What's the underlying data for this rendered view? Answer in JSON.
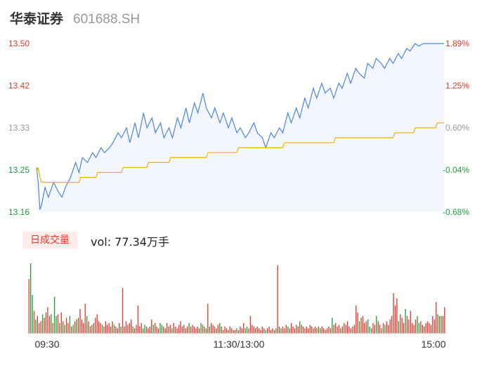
{
  "header": {
    "stock_name": "华泰证券",
    "stock_code": "601688.SH"
  },
  "volume_panel": {
    "tag_label": "日成交量",
    "readout": "vol: 77.34万手"
  },
  "colors": {
    "price_line": "#4a86e8",
    "avg_line": "#f0b400",
    "area_fill": "#f3f6fd",
    "up": "#e8392c",
    "down": "#1e9f3c",
    "neutral": "#999999"
  },
  "chart_data": [
    {
      "type": "line",
      "name": "intraday-price",
      "ylim": [
        13.16,
        13.5
      ],
      "xlim": [
        0,
        240
      ],
      "y_ticks_left": [
        "13.50",
        "13.42",
        "13.33",
        "13.25",
        "13.16"
      ],
      "y_ticks_right": [
        "1.89%",
        "1.25%",
        "0.60%",
        "-0.04%",
        "-0.68%"
      ],
      "x_ticks": [
        "09:30",
        "11:30/13:00",
        "15:00"
      ],
      "series": [
        {
          "role": "price",
          "x": [
            0,
            1,
            2,
            3,
            5,
            7,
            10,
            13,
            15,
            17,
            20,
            23,
            25,
            27,
            30,
            33,
            35,
            38,
            40,
            43,
            45,
            48,
            50,
            53,
            55,
            58,
            60,
            63,
            65,
            68,
            70,
            73,
            75,
            78,
            80,
            83,
            85,
            88,
            90,
            93,
            95,
            98,
            100,
            103,
            105,
            108,
            110,
            113,
            115,
            118,
            120,
            123,
            125,
            128,
            130,
            133,
            135,
            138,
            140,
            143,
            145,
            148,
            150,
            153,
            155,
            158,
            160,
            163,
            165,
            168,
            170,
            173,
            175,
            178,
            180,
            183,
            185,
            188,
            190,
            193,
            195,
            198,
            200,
            203,
            205,
            208,
            210,
            213,
            215,
            218,
            220,
            223,
            225,
            228,
            230,
            233,
            235,
            238,
            240
          ],
          "y": [
            13.25,
            13.22,
            13.165,
            13.175,
            13.21,
            13.19,
            13.22,
            13.2,
            13.19,
            13.21,
            13.23,
            13.26,
            13.24,
            13.27,
            13.26,
            13.28,
            13.27,
            13.29,
            13.28,
            13.29,
            13.3,
            13.32,
            13.31,
            13.33,
            13.3,
            13.34,
            13.31,
            13.36,
            13.33,
            13.35,
            13.32,
            13.34,
            13.31,
            13.33,
            13.31,
            13.35,
            13.33,
            13.37,
            13.34,
            13.38,
            13.36,
            13.4,
            13.37,
            13.35,
            13.37,
            13.34,
            13.36,
            13.33,
            13.35,
            13.32,
            13.33,
            13.31,
            13.32,
            13.34,
            13.32,
            13.31,
            13.29,
            13.32,
            13.31,
            13.33,
            13.32,
            13.36,
            13.34,
            13.37,
            13.35,
            13.39,
            13.37,
            13.41,
            13.39,
            13.42,
            13.4,
            13.41,
            13.39,
            13.42,
            13.41,
            13.44,
            13.42,
            13.45,
            13.44,
            13.43,
            13.46,
            13.45,
            13.47,
            13.46,
            13.45,
            13.47,
            13.46,
            13.48,
            13.47,
            13.49,
            13.485,
            13.5,
            13.495,
            13.5,
            13.5,
            13.5,
            13.5,
            13.5,
            13.5
          ]
        },
        {
          "role": "average",
          "x": [
            0,
            1,
            2,
            3,
            5,
            10,
            25,
            26,
            35,
            36,
            50,
            51,
            65,
            66,
            78,
            79,
            100,
            101,
            118,
            119,
            145,
            146,
            175,
            176,
            190,
            191,
            210,
            211,
            222,
            223,
            235,
            236,
            240
          ],
          "y": [
            13.24,
            13.25,
            13.23,
            13.22,
            13.22,
            13.22,
            13.22,
            13.23,
            13.23,
            13.24,
            13.24,
            13.25,
            13.25,
            13.26,
            13.26,
            13.27,
            13.27,
            13.28,
            13.28,
            13.29,
            13.29,
            13.3,
            13.3,
            13.31,
            13.31,
            13.31,
            13.31,
            13.32,
            13.32,
            13.33,
            13.33,
            13.34,
            13.34
          ]
        }
      ]
    },
    {
      "type": "bar",
      "name": "intraday-volume",
      "unit": "万手",
      "x_ticks": [
        "09:30",
        "11:30/13:00",
        "15:00"
      ],
      "values": [
        1.55,
        2.0,
        1.1,
        0.65,
        0.4,
        0.5,
        0.3,
        0.35,
        0.55,
        0.45,
        0.6,
        0.75,
        0.5,
        0.55,
        0.3,
        1.05,
        0.5,
        0.55,
        0.3,
        0.6,
        0.35,
        0.25,
        0.45,
        0.3,
        0.5,
        0.2,
        0.25,
        0.35,
        0.4,
        0.45,
        0.7,
        0.4,
        0.3,
        0.85,
        0.5,
        0.35,
        0.2,
        0.25,
        0.3,
        0.45,
        0.55,
        0.35,
        0.3,
        0.25,
        0.2,
        0.35,
        0.25,
        0.3,
        0.2,
        0.35,
        0.25,
        0.2,
        0.15,
        0.3,
        0.2,
        1.3,
        0.2,
        0.35,
        0.25,
        0.3,
        0.4,
        0.2,
        0.15,
        0.25,
        0.8,
        0.2,
        0.3,
        0.15,
        0.25,
        0.2,
        0.15,
        0.2,
        0.4,
        0.25,
        0.3,
        0.2,
        0.15,
        0.3,
        0.25,
        0.2,
        0.15,
        0.3,
        0.2,
        0.25,
        0.15,
        0.3,
        0.2,
        0.15,
        0.25,
        0.35,
        0.2,
        0.25,
        0.15,
        0.2,
        0.3,
        0.2,
        0.25,
        0.2,
        0.15,
        0.2,
        0.15,
        0.3,
        0.25,
        0.2,
        0.15,
        0.85,
        0.2,
        0.3,
        0.25,
        0.2,
        0.15,
        0.25,
        0.3,
        0.2,
        0.1,
        0.2,
        0.15,
        0.1,
        0.2,
        0.15,
        0.1,
        0.1,
        0.15,
        0.1,
        0.2,
        0.15,
        0.3,
        0.15,
        0.2,
        0.15,
        0.5,
        0.25,
        0.2,
        0.15,
        0.2,
        0.15,
        0.1,
        0.2,
        0.15,
        0.1,
        0.15,
        0.2,
        0.1,
        0.15,
        0.1,
        0.15,
        1.95,
        0.2,
        0.15,
        0.2,
        0.15,
        0.25,
        0.2,
        0.15,
        0.3,
        0.2,
        0.15,
        0.25,
        0.2,
        0.35,
        0.25,
        0.2,
        0.15,
        0.2,
        0.15,
        0.25,
        0.2,
        0.15,
        0.2,
        0.15,
        0.2,
        0.15,
        0.2,
        0.15,
        0.1,
        0.15,
        0.2,
        0.15,
        0.45,
        0.25,
        0.3,
        0.2,
        0.25,
        0.15,
        0.2,
        0.3,
        0.25,
        0.35,
        0.2,
        0.15,
        0.2,
        0.25,
        0.8,
        0.6,
        0.35,
        0.45,
        0.5,
        0.3,
        0.35,
        0.4,
        0.2,
        0.15,
        0.3,
        0.25,
        0.5,
        0.35,
        0.25,
        0.15,
        0.3,
        0.25,
        0.35,
        0.25,
        0.4,
        0.5,
        1.15,
        0.8,
        1.0,
        0.35,
        0.55,
        0.45,
        0.3,
        0.7,
        0.5,
        0.4,
        0.65,
        0.3,
        0.25,
        0.4,
        0.5,
        0.3,
        0.35,
        0.25,
        0.2,
        0.3,
        0.35,
        0.3,
        0.25,
        0.5,
        0.4,
        0.9,
        0.55,
        0.5,
        0.5,
        0.5,
        0.75
      ],
      "directions": [
        "up",
        "down",
        "down",
        "up",
        "down",
        "up",
        "up",
        "up",
        "down",
        "up",
        "up",
        "up",
        "up",
        "down",
        "up",
        "down",
        "down",
        "up",
        "down",
        "up",
        "up",
        "down",
        "up",
        "up",
        "down",
        "up",
        "down",
        "up",
        "down",
        "up",
        "up",
        "up",
        "up",
        "up",
        "down",
        "up",
        "up",
        "down",
        "up",
        "up",
        "up",
        "up",
        "up",
        "down",
        "up",
        "up",
        "up",
        "up",
        "up",
        "up",
        "down",
        "up",
        "up",
        "up",
        "down",
        "up",
        "up",
        "up",
        "up",
        "up",
        "up",
        "down",
        "up",
        "up",
        "up",
        "up",
        "up",
        "down",
        "down",
        "up",
        "up",
        "up",
        "up",
        "down",
        "up",
        "up",
        "up",
        "down",
        "down",
        "up",
        "up",
        "up",
        "up",
        "up",
        "down",
        "up",
        "up",
        "up",
        "up",
        "up",
        "up",
        "up",
        "up",
        "up",
        "down",
        "up",
        "up",
        "up",
        "up",
        "up",
        "up",
        "down",
        "up",
        "down",
        "up",
        "up",
        "down",
        "up",
        "up",
        "up",
        "up",
        "up",
        "down",
        "up",
        "up",
        "up",
        "up",
        "down",
        "up",
        "up",
        "up",
        "up",
        "down",
        "up",
        "up",
        "up",
        "up",
        "down",
        "down",
        "up",
        "up",
        "up",
        "up",
        "up",
        "up",
        "up",
        "up",
        "up",
        "up",
        "down",
        "up",
        "up",
        "up",
        "up",
        "up",
        "down",
        "up",
        "up",
        "down",
        "up",
        "up",
        "up",
        "down",
        "up",
        "up",
        "up",
        "up",
        "up",
        "up",
        "down",
        "up",
        "up",
        "up",
        "up",
        "up",
        "up",
        "up",
        "up",
        "up",
        "down",
        "up",
        "down",
        "up",
        "up",
        "up",
        "up",
        "up",
        "up",
        "down",
        "up",
        "up",
        "up",
        "up",
        "down",
        "up",
        "up",
        "up",
        "up",
        "up",
        "up",
        "up",
        "up",
        "up",
        "up",
        "down",
        "up",
        "up",
        "up",
        "up",
        "down",
        "down",
        "up",
        "up",
        "up",
        "down",
        "up",
        "up",
        "down",
        "up",
        "down",
        "up",
        "up",
        "up",
        "up",
        "up",
        "up",
        "up",
        "down",
        "up",
        "up",
        "up",
        "down",
        "up",
        "up",
        "up",
        "up",
        "up",
        "up",
        "down",
        "down",
        "up",
        "up",
        "up",
        "up",
        "up",
        "up",
        "up",
        "up",
        "up",
        "up",
        "down",
        "up",
        "down",
        "up",
        "up",
        "up",
        "up",
        "up",
        "up",
        "neutral"
      ]
    }
  ]
}
